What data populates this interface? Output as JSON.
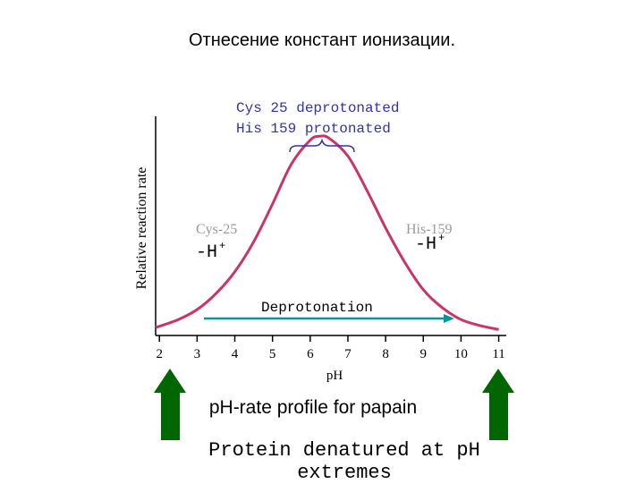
{
  "slide": {
    "title": "Отнесение констант ионизации.",
    "caption": "pH-rate profile for papain",
    "bottom_note": "Protein denatured at pH extremes"
  },
  "colors": {
    "curve": "#cc3366",
    "arrow_teal": "#009999",
    "arrow_green": "#006600",
    "axis": "#000000",
    "label_gray": "#999999"
  },
  "annotations": {
    "optimum_line1": "Cys 25 deprotonated",
    "optimum_line2": "His 159 protonated",
    "left_group": "Cys-25",
    "right_group": "His-159",
    "left_proton": "-H",
    "right_proton": "-H",
    "plus": "+",
    "deprotonation": "Deprotonation"
  },
  "chart_data": {
    "type": "line",
    "title": "",
    "xlabel": "pH",
    "ylabel": "Relative reaction rate",
    "xlim": [
      1.9,
      11.2
    ],
    "ylim": [
      0,
      1.1
    ],
    "xticks": [
      2,
      3,
      4,
      5,
      6,
      7,
      8,
      9,
      10,
      11
    ],
    "grid": false,
    "series": [
      {
        "x": [
          1.9,
          2.5,
          3.0,
          3.5,
          4.0,
          4.5,
          5.0,
          5.5,
          6.0,
          6.25,
          6.5,
          7.0,
          7.5,
          8.0,
          8.5,
          9.0,
          9.5,
          10.0,
          10.5,
          11.0
        ],
        "y": [
          0.04,
          0.08,
          0.13,
          0.21,
          0.32,
          0.47,
          0.66,
          0.86,
          0.98,
          1.0,
          0.99,
          0.9,
          0.73,
          0.54,
          0.37,
          0.23,
          0.14,
          0.08,
          0.05,
          0.03
        ]
      }
    ]
  }
}
